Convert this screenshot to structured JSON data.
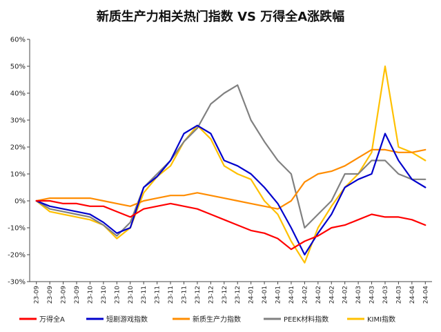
{
  "chart_data": {
    "type": "line",
    "title": "新质生产力相关热门指数 VS 万得全A涨跌幅",
    "xlabel": "",
    "ylabel": "",
    "ylim": [
      -30,
      60
    ],
    "yticks": [
      -30,
      -20,
      -10,
      0,
      10,
      20,
      30,
      40,
      50,
      60
    ],
    "ytick_labels": [
      "-30%",
      "-20%",
      "-10%",
      "0%",
      "10%",
      "20%",
      "30%",
      "40%",
      "50%",
      "60%"
    ],
    "x_tick_labels": [
      "23-09",
      "23-09",
      "23-09",
      "23-09",
      "23-10",
      "23-10",
      "23-10",
      "23-10",
      "23-11",
      "23-11",
      "23-11",
      "23-11",
      "23-12",
      "23-12",
      "23-12",
      "23-12",
      "24-01",
      "24-01",
      "24-01",
      "24-01",
      "24-02",
      "24-02",
      "24-02",
      "24-02",
      "24-03",
      "24-03",
      "24-03",
      "24-03",
      "24-04",
      "24-04"
    ],
    "legend_position": "bottom",
    "grid": false,
    "x_count": 30,
    "series": [
      {
        "name": "万得全A",
        "color": "#ff0000",
        "values": [
          0,
          0,
          -1,
          -1,
          -2,
          -2,
          -4,
          -6,
          -3,
          -2,
          -1,
          -2,
          -3,
          -5,
          -7,
          -9,
          -11,
          -12,
          -14,
          -18,
          -15,
          -13,
          -10,
          -9,
          -7,
          -5,
          -6,
          -6,
          -7,
          -9
        ]
      },
      {
        "name": "短剧游戏指数",
        "color": "#0000cc",
        "values": [
          0,
          -2,
          -3,
          -4,
          -5,
          -8,
          -12,
          -10,
          5,
          9,
          15,
          25,
          28,
          25,
          15,
          13,
          10,
          5,
          -1,
          -10,
          -20,
          -12,
          -5,
          5,
          8,
          10,
          25,
          15,
          8,
          5
        ]
      },
      {
        "name": "新质生产力指数",
        "color": "#ff8c00",
        "values": [
          0,
          1,
          1,
          1,
          1,
          0,
          -1,
          -2,
          0,
          1,
          2,
          2,
          3,
          2,
          1,
          0,
          -1,
          -2,
          -3,
          0,
          7,
          10,
          11,
          13,
          16,
          19,
          19,
          18,
          18,
          19
        ]
      },
      {
        "name": "PEEK材料指数",
        "color": "#808080",
        "values": [
          0,
          -3,
          -4,
          -5,
          -6,
          -9,
          -13,
          -8,
          5,
          10,
          15,
          22,
          27,
          36,
          40,
          43,
          30,
          22,
          15,
          10,
          -10,
          -5,
          0,
          10,
          10,
          15,
          15,
          10,
          8,
          8
        ]
      },
      {
        "name": "KIMI指数",
        "color": "#ffc000",
        "values": [
          0,
          -4,
          -5,
          -6,
          -7,
          -9,
          -14,
          -10,
          3,
          9,
          13,
          22,
          28,
          23,
          13,
          10,
          8,
          0,
          -5,
          -15,
          -23,
          -10,
          -2,
          5,
          10,
          18,
          50,
          20,
          18,
          15
        ]
      }
    ]
  }
}
